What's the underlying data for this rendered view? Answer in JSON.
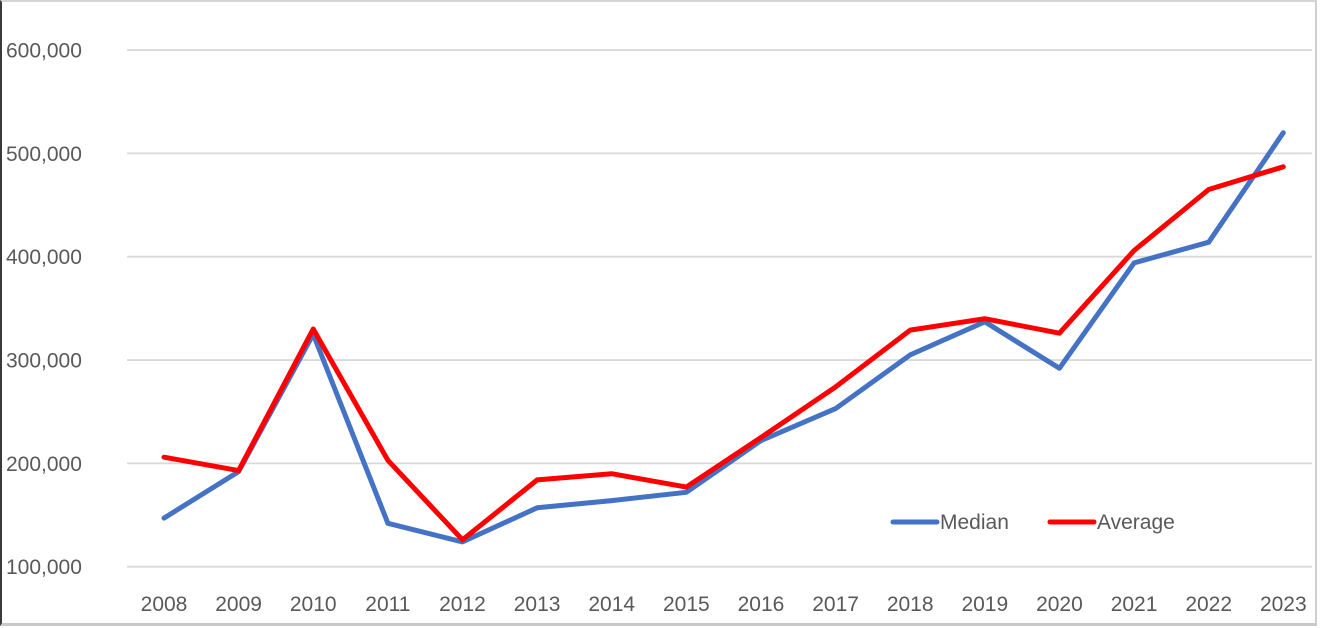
{
  "chart_data": {
    "type": "line",
    "title": "",
    "categories": [
      "2008",
      "2009",
      "2010",
      "2011",
      "2012",
      "2013",
      "2014",
      "2015",
      "2016",
      "2017",
      "2018",
      "2019",
      "2020",
      "2021",
      "2022",
      "2023"
    ],
    "series": [
      {
        "name": "Median",
        "color": "#4472C4",
        "values": [
          147000,
          192000,
          325000,
          142000,
          124000,
          157000,
          164000,
          172000,
          222000,
          253000,
          305000,
          337000,
          292000,
          394000,
          414000,
          520000
        ]
      },
      {
        "name": "Average",
        "color": "#FF0000",
        "values": [
          206000,
          193000,
          330000,
          203000,
          126000,
          184000,
          190000,
          177000,
          225000,
          274000,
          329000,
          340000,
          326000,
          406000,
          465000,
          487000
        ]
      }
    ],
    "xlabel": "",
    "ylabel": "",
    "y_axis": {
      "min": 100000,
      "max": 600000,
      "tick_interval": 100000,
      "tick_labels": [
        "100,000",
        "200,000",
        "300,000",
        "400,000",
        "500,000",
        "600,000"
      ]
    },
    "legend": {
      "position": "inside-bottom-right",
      "items": [
        "Median",
        "Average"
      ]
    },
    "grid": "horizontal",
    "colors": {
      "text": "#595959",
      "gridline": "#D9D9D9",
      "background": "#FFFFFF"
    }
  }
}
